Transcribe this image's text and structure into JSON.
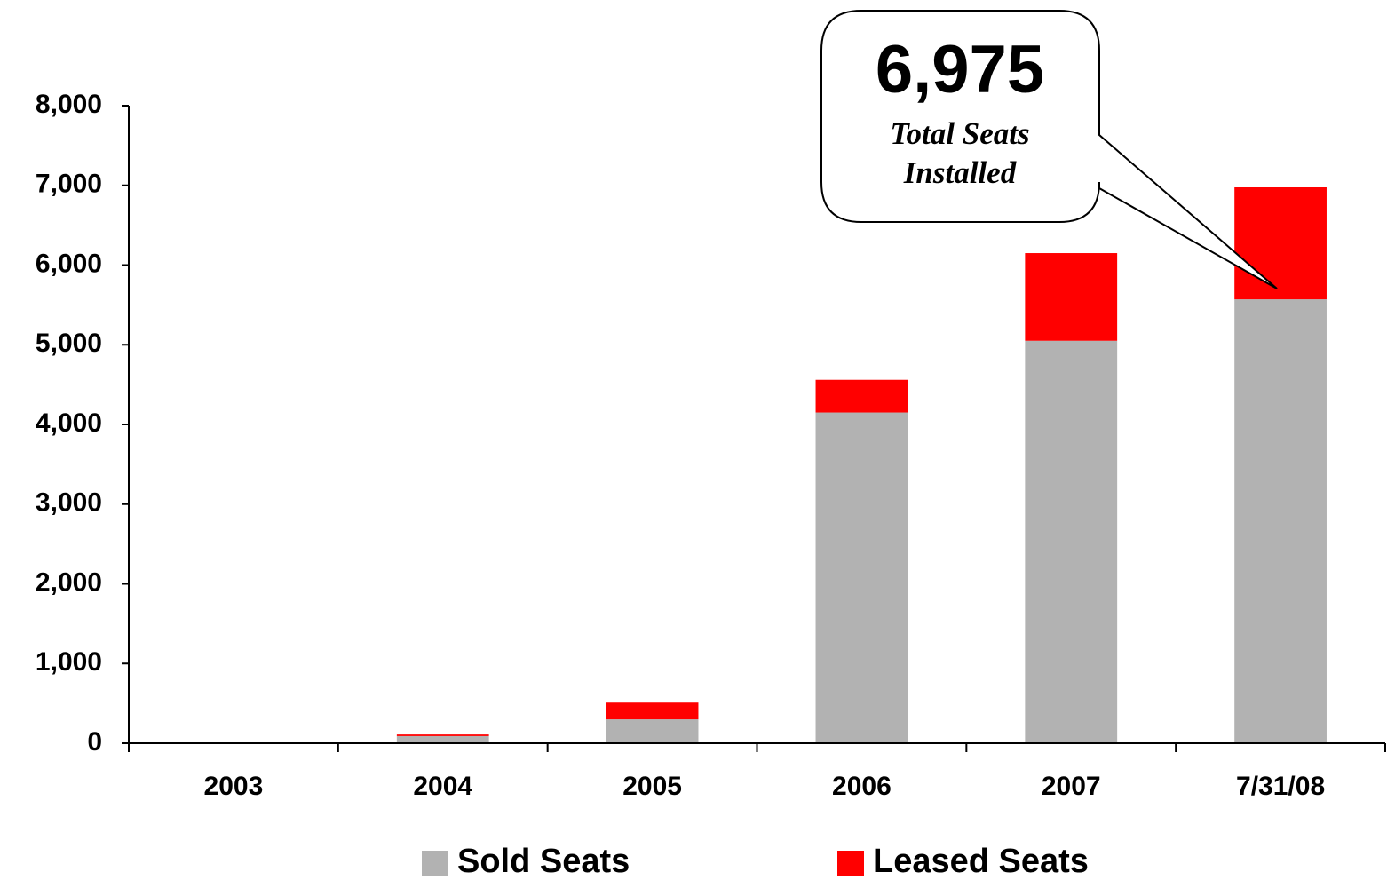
{
  "chart_data": {
    "type": "stacked_bar",
    "categories": [
      "2003",
      "2004",
      "2005",
      "2006",
      "2007",
      "7/31/08"
    ],
    "series": [
      {
        "name": "Sold Seats",
        "color": "#b2b2b2",
        "values": [
          10,
          90,
          300,
          4150,
          5050,
          5570
        ]
      },
      {
        "name": "Leased Seats",
        "color": "#ff0000",
        "values": [
          0,
          20,
          210,
          410,
          1100,
          1405
        ]
      }
    ],
    "ylim": [
      0,
      8000
    ],
    "yticks": [
      0,
      {
        "value": 1000,
        "label": "1,000"
      },
      {
        "value": 2000,
        "label": "2,000"
      },
      {
        "value": 3000,
        "label": "3,000"
      },
      {
        "value": 4000,
        "label": "4,000"
      },
      {
        "value": 5000,
        "label": "5,000"
      },
      {
        "value": 6000,
        "label": "6,000"
      },
      {
        "value": 7000,
        "label": "7,000"
      },
      {
        "value": 8000,
        "label": "8,000"
      }
    ],
    "legend": "bottom",
    "annotations": [
      {
        "label": "6,975",
        "text": [
          "Total Seats",
          "Installed"
        ]
      }
    ]
  }
}
